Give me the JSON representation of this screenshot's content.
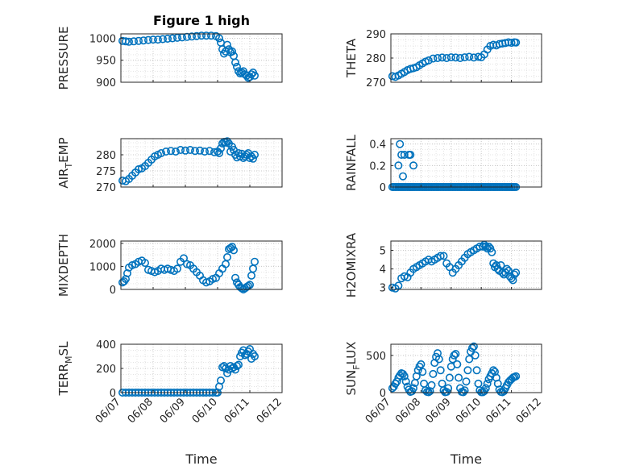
{
  "figure": {
    "title": "Figure 1 high"
  },
  "colors": {
    "marker": "#0072BD",
    "axis": "#262626",
    "grid": "#d9d9d9"
  },
  "x_axis": {
    "ticks": [
      "06/07",
      "06/08",
      "06/09",
      "06/10",
      "06/11",
      "06/12"
    ],
    "label": "Time",
    "range": [
      0,
      5
    ]
  },
  "chart_data": [
    {
      "id": "pressure",
      "type": "scatter",
      "title": "Figure 1 high",
      "ylabel": "PRESSURE",
      "ylim": [
        900,
        1010
      ],
      "yticks": [
        900,
        950,
        1000
      ],
      "show_xticks": false,
      "show_xlabel": false,
      "x": [
        0.05,
        0.15,
        0.25,
        0.4,
        0.55,
        0.7,
        0.85,
        1.0,
        1.15,
        1.3,
        1.45,
        1.6,
        1.75,
        1.9,
        2.05,
        2.2,
        2.35,
        2.5,
        2.65,
        2.8,
        2.95,
        3.05,
        3.1,
        3.15,
        3.2,
        3.25,
        3.3,
        3.35,
        3.4,
        3.45,
        3.5,
        3.55,
        3.6,
        3.65,
        3.7,
        3.75,
        3.8,
        3.85,
        3.9,
        3.95,
        4.0,
        4.05,
        4.1,
        4.15
      ],
      "y": [
        994,
        993,
        992,
        993,
        994,
        995,
        996,
        997,
        997,
        998,
        999,
        1000,
        1001,
        1002,
        1003,
        1004,
        1005,
        1006,
        1006,
        1006,
        1005,
        1000,
        990,
        975,
        965,
        970,
        985,
        975,
        968,
        970,
        960,
        945,
        935,
        925,
        920,
        922,
        925,
        918,
        915,
        910,
        912,
        918,
        922,
        915
      ]
    },
    {
      "id": "theta",
      "type": "scatter",
      "ylabel": "THETA",
      "ylim": [
        270,
        290
      ],
      "yticks": [
        270,
        280,
        290
      ],
      "show_xticks": false,
      "show_xlabel": false,
      "x": [
        0.05,
        0.15,
        0.25,
        0.35,
        0.45,
        0.55,
        0.65,
        0.75,
        0.85,
        0.95,
        1.05,
        1.15,
        1.25,
        1.4,
        1.55,
        1.7,
        1.85,
        2.0,
        2.15,
        2.3,
        2.45,
        2.6,
        2.75,
        2.9,
        3.0,
        3.1,
        3.2,
        3.3,
        3.4,
        3.5,
        3.6,
        3.7,
        3.8,
        3.9,
        4.0,
        4.1,
        4.15
      ],
      "y": [
        272.5,
        272.2,
        272.8,
        273.5,
        274.2,
        275.0,
        275.5,
        275.8,
        276.2,
        277.0,
        277.8,
        278.5,
        279.0,
        279.8,
        280.0,
        280.2,
        280.0,
        280.3,
        280.2,
        280.0,
        280.3,
        280.5,
        280.2,
        280.5,
        280.3,
        281.5,
        283.5,
        285.0,
        285.5,
        285.2,
        285.8,
        286.0,
        286.2,
        286.5,
        286.3,
        286.5,
        286.4
      ]
    },
    {
      "id": "air_temp",
      "type": "scatter",
      "ylabel": "AIR_TEMP",
      "ylabel_main": "AIR",
      "ylabel_sub": "T",
      "ylabel_rest": "EMP",
      "ylim": [
        270,
        285
      ],
      "yticks": [
        270,
        275,
        280
      ],
      "show_xticks": false,
      "show_xlabel": false,
      "x": [
        0.05,
        0.15,
        0.25,
        0.35,
        0.45,
        0.55,
        0.65,
        0.75,
        0.85,
        0.95,
        1.05,
        1.15,
        1.25,
        1.4,
        1.55,
        1.7,
        1.85,
        2.0,
        2.15,
        2.3,
        2.45,
        2.6,
        2.75,
        2.9,
        3.0,
        3.05,
        3.1,
        3.15,
        3.2,
        3.25,
        3.3,
        3.35,
        3.4,
        3.45,
        3.5,
        3.55,
        3.6,
        3.65,
        3.7,
        3.75,
        3.8,
        3.85,
        3.9,
        3.95,
        4.0,
        4.05,
        4.1,
        4.15
      ],
      "y": [
        272.0,
        271.8,
        272.5,
        273.5,
        274.5,
        275.5,
        275.8,
        276.5,
        277.5,
        278.5,
        279.5,
        280.0,
        280.5,
        281.0,
        281.2,
        281.0,
        281.5,
        281.3,
        281.5,
        281.2,
        281.3,
        281.0,
        281.2,
        280.8,
        281.0,
        280.5,
        282.0,
        283.5,
        284.0,
        283.8,
        284.2,
        283.5,
        281.0,
        282.5,
        281.5,
        280.0,
        279.2,
        280.5,
        279.5,
        280.3,
        279.0,
        279.5,
        280.0,
        280.5,
        279.0,
        279.5,
        278.8,
        280.0
      ]
    },
    {
      "id": "rainfall",
      "type": "scatter",
      "ylabel": "RAINFALL",
      "ylim": [
        0,
        0.45
      ],
      "yticks": [
        0,
        0.2,
        0.4
      ],
      "show_xticks": false,
      "show_xlabel": false,
      "x": [
        0.05,
        0.1,
        0.15,
        0.2,
        0.25,
        0.3,
        0.35,
        0.4,
        0.45,
        0.5,
        0.55,
        0.6,
        0.65,
        0.7,
        0.75,
        0.8,
        0.85,
        0.9,
        0.95,
        1.0,
        1.05,
        1.1,
        1.15,
        1.2,
        1.25,
        1.3,
        1.35,
        1.4,
        1.45,
        1.5,
        1.55,
        1.6,
        1.65,
        1.7,
        1.75,
        1.8,
        1.85,
        1.9,
        1.95,
        2.0,
        2.05,
        2.1,
        2.15,
        2.2,
        2.25,
        2.3,
        2.35,
        2.4,
        2.45,
        2.5,
        2.55,
        2.6,
        2.65,
        2.7,
        2.75,
        2.8,
        2.85,
        2.9,
        2.95,
        3.0,
        3.05,
        3.1,
        3.15,
        3.2,
        3.25,
        3.3,
        3.35,
        3.4,
        3.45,
        3.5,
        3.55,
        3.6,
        3.65,
        3.7,
        3.75,
        3.8,
        3.85,
        3.9,
        3.95,
        4.0,
        4.05,
        4.1,
        4.15,
        0.25,
        0.3,
        0.35,
        0.4,
        0.45,
        0.6,
        0.65,
        0.75
      ],
      "y": [
        0,
        0,
        0,
        0,
        0,
        0,
        0,
        0,
        0,
        0,
        0,
        0,
        0,
        0,
        0,
        0,
        0,
        0,
        0,
        0,
        0,
        0,
        0,
        0,
        0,
        0,
        0,
        0,
        0,
        0,
        0,
        0,
        0,
        0,
        0,
        0,
        0,
        0,
        0,
        0,
        0,
        0,
        0,
        0,
        0,
        0,
        0,
        0,
        0,
        0,
        0,
        0,
        0,
        0,
        0,
        0,
        0,
        0,
        0,
        0,
        0,
        0,
        0,
        0,
        0,
        0,
        0,
        0,
        0,
        0,
        0,
        0,
        0,
        0,
        0,
        0,
        0,
        0,
        0,
        0,
        0,
        0,
        0,
        0.2,
        0.4,
        0.3,
        0.1,
        0.3,
        0.3,
        0.3,
        0.2
      ]
    },
    {
      "id": "mixdepth",
      "type": "scatter",
      "ylabel": "MIXDEPTH",
      "ylim": [
        0,
        2100
      ],
      "yticks": [
        0,
        1000,
        2000
      ],
      "show_xticks": false,
      "show_xlabel": false,
      "x": [
        0.05,
        0.1,
        0.15,
        0.2,
        0.25,
        0.35,
        0.45,
        0.55,
        0.65,
        0.75,
        0.85,
        0.95,
        1.05,
        1.15,
        1.25,
        1.35,
        1.45,
        1.55,
        1.65,
        1.75,
        1.85,
        1.95,
        2.05,
        2.15,
        2.25,
        2.35,
        2.45,
        2.55,
        2.65,
        2.75,
        2.85,
        2.95,
        3.05,
        3.15,
        3.25,
        3.3,
        3.35,
        3.4,
        3.45,
        3.5,
        3.55,
        3.6,
        3.65,
        3.7,
        3.75,
        3.8,
        3.85,
        3.9,
        3.95,
        4.0,
        4.05,
        4.1,
        4.15
      ],
      "y": [
        300,
        350,
        450,
        700,
        950,
        1050,
        1100,
        1200,
        1250,
        1150,
        850,
        800,
        750,
        800,
        900,
        850,
        900,
        850,
        800,
        900,
        1200,
        1350,
        1100,
        1050,
        900,
        750,
        600,
        400,
        300,
        350,
        450,
        500,
        700,
        900,
        1100,
        1400,
        1750,
        1800,
        1850,
        1700,
        500,
        300,
        200,
        100,
        50,
        0,
        50,
        100,
        150,
        200,
        600,
        900,
        1200
      ]
    },
    {
      "id": "h2omixra",
      "type": "scatter",
      "ylabel": "H2OMIXRA",
      "ylim": [
        2.9,
        5.5
      ],
      "yticks": [
        3,
        4,
        5
      ],
      "show_xticks": false,
      "show_xlabel": false,
      "x": [
        0.05,
        0.15,
        0.25,
        0.35,
        0.45,
        0.55,
        0.65,
        0.75,
        0.85,
        0.95,
        1.05,
        1.15,
        1.25,
        1.35,
        1.45,
        1.55,
        1.65,
        1.75,
        1.85,
        1.95,
        2.05,
        2.15,
        2.25,
        2.35,
        2.45,
        2.55,
        2.65,
        2.75,
        2.85,
        2.95,
        3.05,
        3.1,
        3.15,
        3.2,
        3.25,
        3.3,
        3.35,
        3.4,
        3.45,
        3.5,
        3.55,
        3.6,
        3.65,
        3.7,
        3.75,
        3.8,
        3.85,
        3.9,
        3.95,
        4.0,
        4.05,
        4.1,
        4.15
      ],
      "y": [
        3.0,
        2.95,
        3.1,
        3.5,
        3.6,
        3.55,
        3.8,
        4.0,
        4.1,
        4.2,
        4.3,
        4.4,
        4.5,
        4.4,
        4.5,
        4.6,
        4.7,
        4.7,
        4.3,
        4.1,
        3.8,
        4.0,
        4.2,
        4.4,
        4.6,
        4.8,
        4.9,
        5.0,
        5.1,
        5.2,
        5.2,
        5.3,
        5.2,
        5.1,
        5.2,
        5.1,
        4.9,
        4.3,
        4.1,
        4.2,
        4.0,
        3.9,
        4.2,
        3.8,
        3.7,
        3.8,
        4.0,
        3.9,
        3.6,
        3.5,
        3.4,
        3.7,
        3.8
      ]
    },
    {
      "id": "terr_msl",
      "type": "scatter",
      "ylabel": "TERR_MSL",
      "ylabel_main": "TERR",
      "ylabel_sub": "M",
      "ylabel_rest": "SL",
      "ylim": [
        0,
        400
      ],
      "yticks": [
        0,
        200,
        400
      ],
      "show_xticks": true,
      "show_xlabel": true,
      "x": [
        0.05,
        0.15,
        0.25,
        0.35,
        0.45,
        0.55,
        0.65,
        0.75,
        0.85,
        0.95,
        1.05,
        1.15,
        1.25,
        1.35,
        1.45,
        1.55,
        1.65,
        1.75,
        1.85,
        1.95,
        2.05,
        2.15,
        2.25,
        2.35,
        2.45,
        2.55,
        2.65,
        2.75,
        2.85,
        2.95,
        3.0,
        3.05,
        3.1,
        3.15,
        3.2,
        3.25,
        3.3,
        3.35,
        3.4,
        3.45,
        3.5,
        3.55,
        3.6,
        3.65,
        3.7,
        3.75,
        3.8,
        3.85,
        3.9,
        3.95,
        4.0,
        4.05,
        4.1,
        4.15
      ],
      "y": [
        0,
        0,
        0,
        0,
        0,
        0,
        0,
        0,
        0,
        0,
        0,
        0,
        0,
        0,
        0,
        0,
        0,
        0,
        0,
        0,
        0,
        0,
        0,
        0,
        0,
        0,
        0,
        0,
        0,
        0,
        0,
        50,
        100,
        210,
        220,
        200,
        160,
        190,
        220,
        200,
        210,
        190,
        220,
        230,
        300,
        330,
        350,
        310,
        320,
        340,
        360,
        280,
        320,
        300
      ]
    },
    {
      "id": "sun_flux",
      "type": "scatter",
      "ylabel": "SUN_FLUX",
      "ylabel_main": "SUN",
      "ylabel_sub": "F",
      "ylabel_rest": "LUX",
      "ylim": [
        0,
        650
      ],
      "yticks": [
        0,
        500
      ],
      "show_xticks": true,
      "show_xlabel": true,
      "x": [
        0.05,
        0.1,
        0.15,
        0.2,
        0.25,
        0.3,
        0.35,
        0.4,
        0.45,
        0.5,
        0.55,
        0.6,
        0.65,
        0.7,
        0.75,
        0.8,
        0.85,
        0.9,
        0.95,
        1.0,
        1.05,
        1.1,
        1.15,
        1.2,
        1.25,
        1.3,
        1.35,
        1.4,
        1.45,
        1.5,
        1.55,
        1.6,
        1.65,
        1.7,
        1.75,
        1.8,
        1.85,
        1.9,
        1.95,
        2.0,
        2.05,
        2.1,
        2.15,
        2.2,
        2.25,
        2.3,
        2.35,
        2.4,
        2.45,
        2.5,
        2.55,
        2.6,
        2.65,
        2.7,
        2.75,
        2.8,
        2.85,
        2.9,
        2.95,
        3.0,
        3.05,
        3.1,
        3.15,
        3.2,
        3.25,
        3.3,
        3.35,
        3.4,
        3.45,
        3.5,
        3.55,
        3.6,
        3.65,
        3.7,
        3.75,
        3.8,
        3.85,
        3.9,
        3.95,
        4.0,
        4.05,
        4.1,
        4.15
      ],
      "y": [
        60,
        80,
        120,
        150,
        200,
        230,
        260,
        250,
        220,
        150,
        80,
        40,
        10,
        20,
        60,
        130,
        220,
        300,
        350,
        380,
        280,
        120,
        30,
        10,
        5,
        20,
        100,
        250,
        400,
        480,
        530,
        450,
        300,
        120,
        30,
        5,
        10,
        60,
        200,
        350,
        450,
        500,
        520,
        380,
        200,
        60,
        10,
        5,
        30,
        150,
        300,
        450,
        550,
        600,
        620,
        500,
        300,
        120,
        30,
        5,
        5,
        20,
        60,
        120,
        180,
        220,
        260,
        300,
        280,
        200,
        120,
        40,
        10,
        5,
        20,
        60,
        100,
        140,
        160,
        180,
        200,
        210,
        220
      ]
    }
  ]
}
